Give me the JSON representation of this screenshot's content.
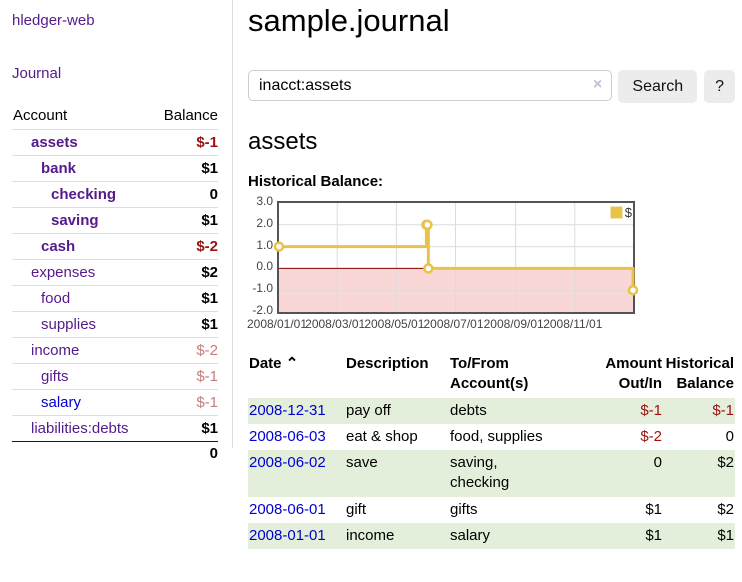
{
  "colors": {
    "link_purple": "#551a8b",
    "link_blue": "#0000cc",
    "negative_strong": "#9b1212",
    "negative_muted": "#c47d7d",
    "row_stripe_green": "#e3efdb",
    "series_gold": "#e9c348",
    "zero_line_red": "#8b0000",
    "negative_region_pink": "#f9d7d7",
    "grid_gray": "#dcdcdc",
    "plot_border": "#545454"
  },
  "sidebar": {
    "brand": "hledger-web",
    "nav_journal": "Journal",
    "accounts": {
      "header_account": "Account",
      "header_balance": "Balance",
      "rows": [
        {
          "name": "assets",
          "balance": "$-1",
          "depth": 1,
          "bold": true,
          "neg": "strong"
        },
        {
          "name": "bank",
          "balance": "$1",
          "depth": 2,
          "bold": true,
          "neg": null
        },
        {
          "name": "checking",
          "balance": "0",
          "depth": 3,
          "bold": true,
          "neg": null
        },
        {
          "name": "saving",
          "balance": "$1",
          "depth": 3,
          "bold": true,
          "neg": null
        },
        {
          "name": "cash",
          "balance": "$-2",
          "depth": 2,
          "bold": true,
          "neg": "strong"
        },
        {
          "name": "expenses",
          "balance": "$2",
          "depth": 1,
          "bold": false,
          "neg": null
        },
        {
          "name": "food",
          "balance": "$1",
          "depth": 2,
          "bold": false,
          "neg": null
        },
        {
          "name": "supplies",
          "balance": "$1",
          "depth": 2,
          "bold": false,
          "neg": null
        },
        {
          "name": "income",
          "balance": "$-2",
          "depth": 1,
          "bold": false,
          "neg": "muted"
        },
        {
          "name": "gifts",
          "balance": "$-1",
          "depth": 2,
          "bold": false,
          "neg": "muted"
        },
        {
          "name": "salary",
          "balance": "$-1",
          "depth": 2,
          "bold": false,
          "neg": "muted",
          "link_style": "blue"
        },
        {
          "name": "liabilities:debts",
          "balance": "$1",
          "depth": 1,
          "bold": false,
          "neg": null
        }
      ],
      "total": "0"
    }
  },
  "main": {
    "title": "sample.journal",
    "search": {
      "value": "inacct:assets",
      "clear_icon": "×",
      "button_label": "Search",
      "help_label": "?"
    },
    "account_heading": "assets",
    "chart_label": "Historical Balance:"
  },
  "chart_data": {
    "type": "line",
    "subtype": "step-with-markers",
    "title": "Historical Balance:",
    "x_range": [
      "2008-01-01",
      "2008-12-31"
    ],
    "ylim": [
      -2.0,
      3.0
    ],
    "yticks": [
      3.0,
      2.0,
      1.0,
      0.0,
      -1.0,
      -2.0
    ],
    "ytick_labels": [
      "3.0",
      "2.0",
      "1.0",
      "0.0",
      "-1.0",
      "-2.0"
    ],
    "xtick_labels": [
      "2008/01/01",
      "2008/03/01",
      "2008/05/01",
      "2008/07/01",
      "2008/09/01",
      "2008/11/01"
    ],
    "grid": true,
    "legend_position": "top-right",
    "series": [
      {
        "name": "$",
        "points": [
          [
            "2008-01-01",
            1
          ],
          [
            "2008-06-01",
            2
          ],
          [
            "2008-06-02",
            2
          ],
          [
            "2008-06-03",
            0
          ],
          [
            "2008-12-31",
            -1
          ]
        ]
      }
    ],
    "negative_region_shaded": true
  },
  "register": {
    "headers": {
      "date": "Date",
      "sort_icon": "⌃",
      "description": "Description",
      "tofrom_line1": "To/From",
      "tofrom_line2": "Account(s)",
      "amount_line1": "Amount",
      "amount_line2": "Out/In",
      "hist_line1": "Historical",
      "hist_line2": "Balance"
    },
    "rows": [
      {
        "date": "2008-12-31",
        "description": "pay off",
        "accounts": [
          "debts"
        ],
        "amount": "$-1",
        "amount_neg": true,
        "balance": "$-1",
        "balance_neg": true
      },
      {
        "date": "2008-06-03",
        "description": "eat & shop",
        "accounts": [
          "food, supplies"
        ],
        "amount": "$-2",
        "amount_neg": true,
        "balance": "0",
        "balance_neg": false
      },
      {
        "date": "2008-06-02",
        "description": "save",
        "accounts": [
          "saving,",
          "checking"
        ],
        "amount": "0",
        "amount_neg": false,
        "balance": "$2",
        "balance_neg": false
      },
      {
        "date": "2008-06-01",
        "description": "gift",
        "accounts": [
          "gifts"
        ],
        "amount": "$1",
        "amount_neg": false,
        "balance": "$2",
        "balance_neg": false
      },
      {
        "date": "2008-01-01",
        "description": "income",
        "accounts": [
          "salary"
        ],
        "amount": "$1",
        "amount_neg": false,
        "balance": "$1",
        "balance_neg": false
      }
    ]
  }
}
